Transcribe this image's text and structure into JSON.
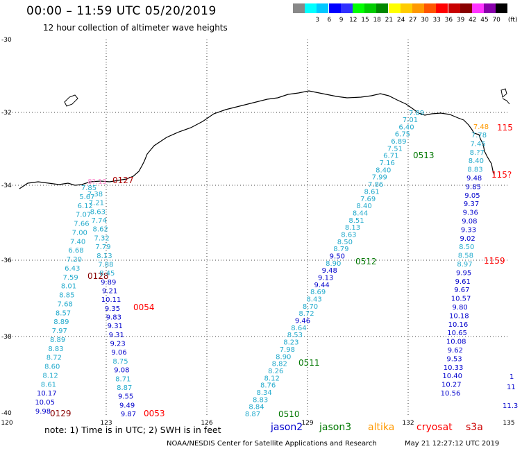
{
  "header": {
    "title": "00:00 – 11:59 UTC 05/20/2019",
    "subtitle": "12 hour collection of altimeter wave heights"
  },
  "legend": {
    "unit": "(ft)",
    "colors": [
      "#888888",
      "#00ffff",
      "#00c8ff",
      "#0000ff",
      "#3030ff",
      "#00ff00",
      "#00cc00",
      "#008800",
      "#ffff00",
      "#ffcc00",
      "#ff9900",
      "#ff5500",
      "#ff0000",
      "#c80000",
      "#880000",
      "#ff33ff",
      "#8800aa",
      "#000000"
    ],
    "labels": [
      "",
      "3",
      "6",
      "9",
      "12",
      "15",
      "18",
      "21",
      "24",
      "27",
      "30",
      "33",
      "36",
      "39",
      "42",
      "45",
      "70",
      ""
    ]
  },
  "axes": {
    "x_ticks": [
      "120",
      "123",
      "126",
      "129",
      "132",
      "135"
    ],
    "y_ticks": [
      "-30",
      "-32",
      "-34",
      "-36",
      "-38",
      "-40"
    ]
  },
  "satellite_colors": {
    "jason2": "#0000cc",
    "jason3": "#007700",
    "altika": "#ff9900",
    "cryosat": "#ff0000",
    "s3a": "#cc0000"
  },
  "track_a": {
    "values": [
      "7.85",
      "5.67",
      "6.12",
      "7.07",
      "7.66",
      "7.00",
      "7.40",
      "6.68",
      "7.20",
      "6.43",
      "7.59",
      "8.01",
      "8.85",
      "7.68",
      "8.57",
      "8.89",
      "7.97",
      "8.89",
      "8.83",
      "8.72",
      "8.60",
      "8.12",
      "8.61",
      "10.17",
      "10.05",
      "9.98"
    ],
    "time_top": "0127",
    "time_mid": "0128",
    "time_bot": "0129",
    "top_pink": "8?.13"
  },
  "track_b": {
    "values": [
      "7.38",
      "7.21",
      "8.63",
      "7.74",
      "8.62",
      "7.32",
      "7.79",
      "8.13",
      "7.88",
      "8.45",
      "9.89",
      "9.21",
      "10.11",
      "9.35",
      "9.83",
      "9.31",
      "9.31",
      "9.23",
      "9.06",
      "8.75",
      "9.08",
      "8.71",
      "8.87",
      "9.55",
      "9.49",
      "9.87"
    ],
    "extra_top": "7.88",
    "time_mid": "0054",
    "time_bot": "0053"
  },
  "track_c": {
    "values": [
      "7.01",
      "6.40",
      "6.75",
      "6.89",
      "7.51",
      "6.71",
      "7.16",
      "8.40",
      "7.99",
      "7.86",
      "8.61",
      "7.69",
      "8.40",
      "8.44",
      "8.51",
      "8.13",
      "8.63",
      "8.50",
      "8.79",
      "9.50",
      "8.90",
      "9.48",
      "9.13",
      "9.44",
      "8.69",
      "8.43",
      "8.70",
      "8.72",
      "9.46",
      "8.64",
      "8.53",
      "8.23",
      "7.98",
      "8.90",
      "8.82",
      "8.26",
      "8.12",
      "8.76",
      "8.34",
      "8.83",
      "8.84",
      "8.87"
    ],
    "top": "7.89",
    "times": [
      "0513",
      "0512",
      "0511",
      "0510"
    ]
  },
  "track_d": {
    "top_orange": "7.48",
    "values": [
      "7.78",
      "7.45",
      "8.?7",
      "8.40",
      "8.83",
      "9.48",
      "9.85",
      "9.05",
      "9.37",
      "9.36",
      "9.08",
      "9.33",
      "9.02",
      "8.50",
      "8.58",
      "8.97",
      "9.95",
      "9.61",
      "9.67",
      "10.57",
      "9.80",
      "10.18",
      "10.16",
      "10.65",
      "10.08",
      "9.62",
      "9.53",
      "10.33",
      "10.40",
      "10.27",
      "10.56"
    ],
    "times": [
      "115",
      "115?",
      "1159"
    ],
    "edge": [
      "1",
      "11",
      "11.3"
    ]
  },
  "footer": {
    "note": "note:  1) Time is in UTC;  2) SWH is in feet",
    "sat_labels": [
      "jason2",
      "jason3",
      "altika",
      "cryosat",
      "s3a"
    ],
    "credit": "NOAA/NESDIS Center for Satellite Applications and Research",
    "stamp": "May 21 12:27:12 UTC 2019"
  }
}
